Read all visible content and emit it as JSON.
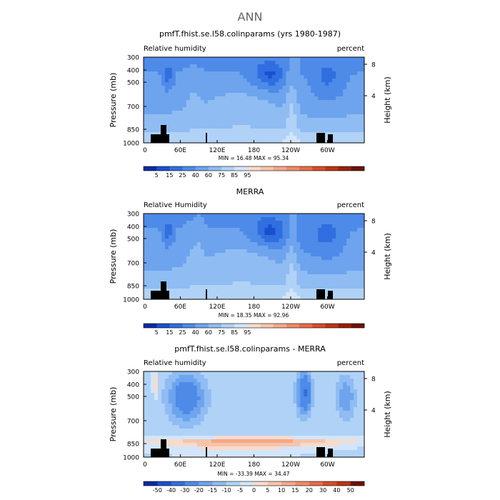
{
  "page_title": "ANN",
  "chart_data": [
    {
      "type": "heatmap",
      "title": "pmfT.fhist.se.l58.colinparams (yrs 1980-1987)",
      "left_label": "Relative humidity",
      "right_label": "percent",
      "ylabel": "Pressure (mb)",
      "ylabel_right": "Height (km)",
      "x_ticks": [
        "0",
        "60E",
        "120E",
        "180",
        "120W",
        "60W"
      ],
      "y_ticks": [
        "300",
        "400",
        "500",
        "700",
        "850",
        "1000"
      ],
      "y2_ticks": [
        "8",
        "4"
      ],
      "ylim": [
        1000,
        300
      ],
      "xlim": [
        0,
        360
      ],
      "stats_text": "MIN =   16.48   MAX =   95.34",
      "min": 16.48,
      "max": 95.34,
      "mode": "abs",
      "colorbar_labels": [
        "5",
        "15",
        "25",
        "40",
        "60",
        "75",
        "85",
        "95"
      ],
      "colorbar_colors": [
        "#0a2aa5",
        "#1a4fd0",
        "#2f6fe0",
        "#4e8ae8",
        "#6ea4ee",
        "#8fbcf3",
        "#b0d2f7",
        "#d2e5fa",
        "#f5dccc",
        "#f7c4aa",
        "#f4a888",
        "#ef8a66",
        "#e66c46",
        "#d64c28",
        "#bc3412",
        "#9a1f06",
        "#6e1202"
      ]
    },
    {
      "type": "heatmap",
      "title": "MERRA",
      "left_label": "Relative Humidity",
      "right_label": "percent",
      "ylabel": "Pressure (mb)",
      "ylabel_right": "Height (km)",
      "x_ticks": [
        "0",
        "60E",
        "120E",
        "180",
        "120W",
        "60W"
      ],
      "y_ticks": [
        "300",
        "400",
        "500",
        "700",
        "850",
        "1000"
      ],
      "y2_ticks": [
        "8",
        "4"
      ],
      "ylim": [
        1000,
        300
      ],
      "xlim": [
        0,
        360
      ],
      "stats_text": "MIN =   18.35   MAX =   92.96",
      "min": 18.35,
      "max": 92.96,
      "mode": "abs",
      "colorbar_labels": [
        "5",
        "15",
        "25",
        "40",
        "60",
        "75",
        "85",
        "95"
      ],
      "colorbar_colors": [
        "#0a2aa5",
        "#1a4fd0",
        "#2f6fe0",
        "#4e8ae8",
        "#6ea4ee",
        "#8fbcf3",
        "#b0d2f7",
        "#d2e5fa",
        "#f5dccc",
        "#f7c4aa",
        "#f4a888",
        "#ef8a66",
        "#e66c46",
        "#d64c28",
        "#bc3412",
        "#9a1f06",
        "#6e1202"
      ]
    },
    {
      "type": "heatmap",
      "title": "pmfT.fhist.se.l58.colinparams - MERRA",
      "left_label": "Relative humidity",
      "right_label": "percent",
      "ylabel": "Pressure (mb)",
      "ylabel_right": "Height (km)",
      "x_ticks": [
        "0",
        "60E",
        "120E",
        "180",
        "120W",
        "60W"
      ],
      "y_ticks": [
        "300",
        "400",
        "500",
        "700",
        "850",
        "1000"
      ],
      "y2_ticks": [
        "8",
        "4"
      ],
      "ylim": [
        1000,
        300
      ],
      "xlim": [
        0,
        360
      ],
      "stats_text": "MIN =  -33.39   MAX =   34.47",
      "min": -33.39,
      "max": 34.47,
      "mode": "diff",
      "colorbar_labels": [
        "-50",
        "-40",
        "-30",
        "-20",
        "-15",
        "-10",
        "-5",
        "0",
        "5",
        "10",
        "15",
        "20",
        "30",
        "40",
        "50"
      ],
      "colorbar_colors": [
        "#0a2aa5",
        "#1a4fd0",
        "#2f6fe0",
        "#4e8ae8",
        "#6ea4ee",
        "#8fbcf3",
        "#b0d2f7",
        "#d2e5fa",
        "#f5dccc",
        "#f7c4aa",
        "#f4a888",
        "#ef8a66",
        "#e66c46",
        "#d64c28",
        "#bc3412",
        "#6e1202"
      ]
    }
  ]
}
